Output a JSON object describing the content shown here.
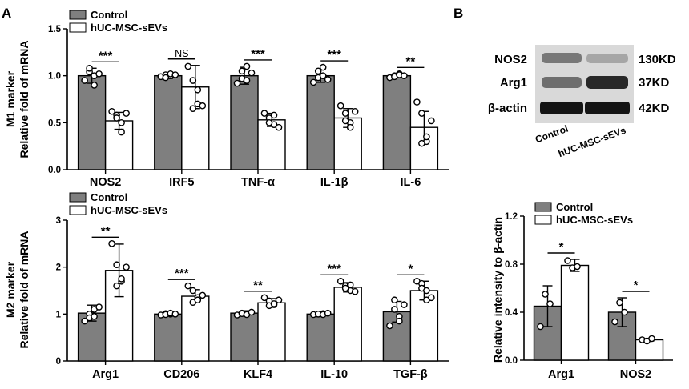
{
  "panel_labels": {
    "a": "A",
    "b": "B"
  },
  "colors": {
    "control": "#7f7f7f",
    "treated": "#ffffff",
    "axis": "#000000"
  },
  "legend": {
    "control": "Control",
    "treated": "hUC-MSC-sEVs"
  },
  "chart_data": [
    {
      "id": "m1",
      "type": "bar",
      "ylabel_line1": "M1 marker",
      "ylabel_line2": "Relative fold of mRNA",
      "ylim": [
        0,
        1.5
      ],
      "yticks": [
        0,
        0.5,
        1.0,
        1.5
      ],
      "ytick_labels": [
        "0.0",
        "0.5",
        "1.0",
        "1.5"
      ],
      "categories": [
        "NOS2",
        "IRF5",
        "TNF-α",
        "IL-1β",
        "IL-6"
      ],
      "series": [
        {
          "name": "Control",
          "values": [
            1.0,
            1.0,
            1.0,
            1.0,
            1.0
          ],
          "errors": [
            0.08,
            0.03,
            0.09,
            0.07,
            0.02
          ],
          "points": [
            [
              0.95,
              1.04,
              0.9,
              1.08,
              1.0,
              1.02
            ],
            [
              0.99,
              1.01,
              1.0,
              0.98,
              1.02,
              1.01
            ],
            [
              0.92,
              1.05,
              1.1,
              0.97,
              0.95,
              1.03
            ],
            [
              0.93,
              1.05,
              1.09,
              0.98,
              1.0,
              0.96
            ],
            [
              0.98,
              1.0,
              1.02,
              0.99,
              1.01,
              1.0
            ]
          ]
        },
        {
          "name": "hUC-MSC-sEVs",
          "values": [
            0.52,
            0.88,
            0.53,
            0.55,
            0.45
          ],
          "errors": [
            0.09,
            0.23,
            0.07,
            0.1,
            0.17
          ],
          "points": [
            [
              0.62,
              0.58,
              0.5,
              0.55,
              0.4,
              0.6
            ],
            [
              1.1,
              0.95,
              0.7,
              0.65,
              0.85,
              0.68
            ],
            [
              0.6,
              0.55,
              0.48,
              0.5,
              0.58,
              0.45
            ],
            [
              0.68,
              0.6,
              0.5,
              0.52,
              0.45,
              0.62
            ],
            [
              0.72,
              0.6,
              0.3,
              0.28,
              0.35,
              0.52
            ]
          ]
        }
      ],
      "significance": [
        "***",
        "NS",
        "***",
        "***",
        "**"
      ]
    },
    {
      "id": "m2",
      "type": "bar",
      "ylabel_line1": "M2 marker",
      "ylabel_line2": "Relative fold of mRNA",
      "ylim": [
        0,
        3
      ],
      "yticks": [
        0,
        1,
        2,
        3
      ],
      "ytick_labels": [
        "0",
        "1",
        "2",
        "3"
      ],
      "categories": [
        "Arg1",
        "CD206",
        "KLF4",
        "IL-10",
        "TGF-β"
      ],
      "series": [
        {
          "name": "Control",
          "values": [
            1.02,
            1.0,
            1.02,
            1.0,
            1.05
          ],
          "errors": [
            0.17,
            0.04,
            0.05,
            0.03,
            0.22
          ],
          "points": [
            [
              0.85,
              1.0,
              1.1,
              0.92,
              0.95,
              1.15
            ],
            [
              0.98,
              1.01,
              1.0,
              0.99,
              1.02,
              1.0
            ],
            [
              0.98,
              1.02,
              1.0,
              1.01,
              0.99,
              1.04
            ],
            [
              0.99,
              1.0,
              1.01,
              1.0,
              0.99,
              1.02
            ],
            [
              0.75,
              1.1,
              0.95,
              1.3,
              0.85,
              1.2
            ]
          ]
        },
        {
          "name": "hUC-MSC-sEVs",
          "values": [
            1.93,
            1.38,
            1.24,
            1.57,
            1.5
          ],
          "errors": [
            0.56,
            0.14,
            0.09,
            0.1,
            0.2
          ],
          "points": [
            [
              2.5,
              2.05,
              1.7,
              1.6,
              1.75,
              2.0
            ],
            [
              1.6,
              1.5,
              1.35,
              1.25,
              1.3,
              1.4
            ],
            [
              1.35,
              1.28,
              1.2,
              1.18,
              1.22,
              1.3
            ],
            [
              1.7,
              1.6,
              1.5,
              1.55,
              1.62,
              1.48
            ],
            [
              1.7,
              1.65,
              1.3,
              1.55,
              1.5,
              1.35
            ]
          ]
        }
      ],
      "significance": [
        "**",
        "***",
        "**",
        "***",
        "*"
      ]
    },
    {
      "id": "wbq",
      "type": "bar",
      "ylabel_line1": "",
      "ylabel_line2": "Relative intensity to β-actin",
      "ylim": [
        0,
        1.2
      ],
      "yticks": [
        0,
        0.4,
        0.8,
        1.2
      ],
      "ytick_labels": [
        "0.0",
        "0.4",
        "0.8",
        "1.2"
      ],
      "categories": [
        "Arg1",
        "NOS2"
      ],
      "series": [
        {
          "name": "Control",
          "values": [
            0.45,
            0.4
          ],
          "errors": [
            0.17,
            0.12
          ],
          "points": [
            [
              0.28,
              0.55,
              0.47
            ],
            [
              0.32,
              0.48,
              0.4
            ]
          ]
        },
        {
          "name": "hUC-MSC-sEVs",
          "values": [
            0.79,
            0.17
          ],
          "errors": [
            0.05,
            0.01
          ],
          "points": [
            [
              0.83,
              0.77,
              0.78
            ],
            [
              0.17,
              0.16,
              0.18
            ]
          ]
        }
      ],
      "significance": [
        "*",
        "*"
      ]
    }
  ],
  "western_blot": {
    "bands": [
      {
        "protein": "NOS2",
        "size": "130KD",
        "control_intensity": 0.45,
        "treated_intensity": 0.22
      },
      {
        "protein": "Arg1",
        "size": "37KD",
        "control_intensity": 0.5,
        "treated_intensity": 0.85
      },
      {
        "protein": "β-actin",
        "size": "42KD",
        "control_intensity": 0.95,
        "treated_intensity": 0.95
      }
    ],
    "lanes": [
      "Control",
      "hUC-MSC-sEVs"
    ]
  }
}
